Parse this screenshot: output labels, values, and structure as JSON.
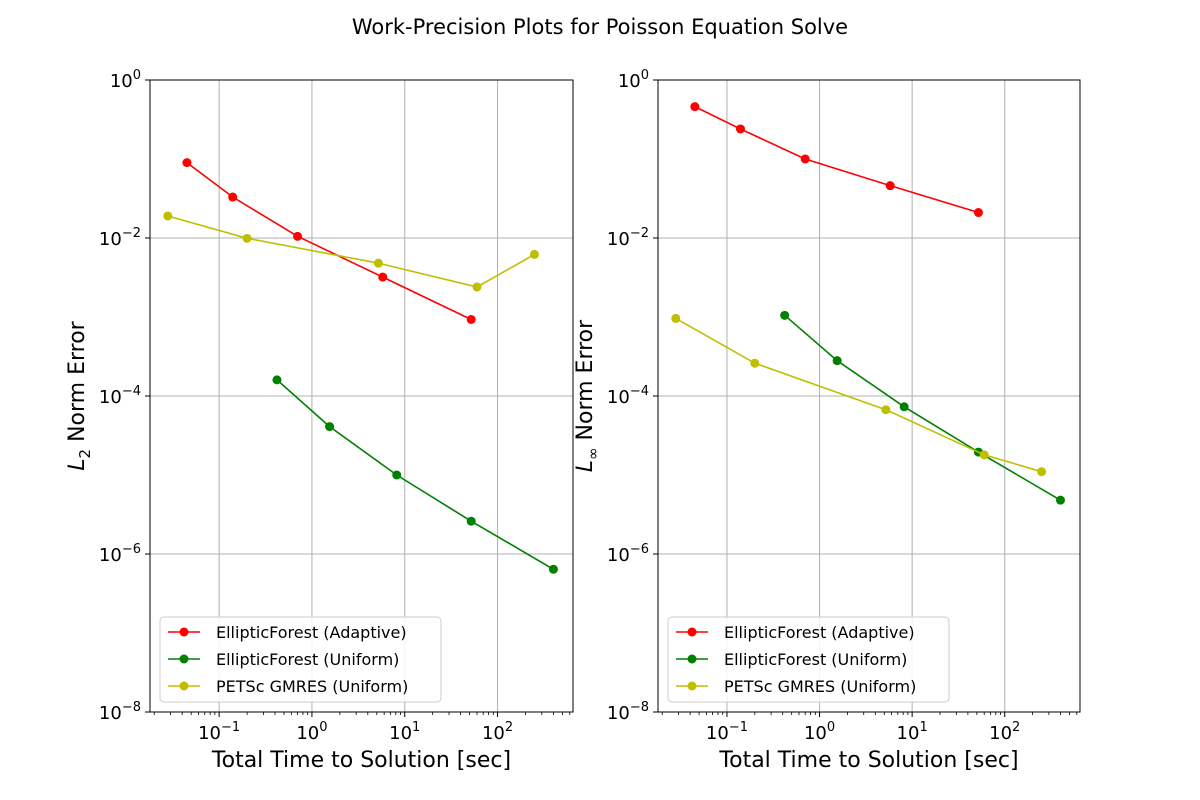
{
  "figure": {
    "title": "Work-Precision Plots for Poisson Equation Solve"
  },
  "chart_data": [
    {
      "type": "line",
      "xlabel": "Total Time to Solution [sec]",
      "ylabel_main": "L",
      "ylabel_sub": "2",
      "ylabel_rest": " Norm Error",
      "xscale": "log",
      "yscale": "log",
      "xlim": [
        0.018,
        650
      ],
      "ylim": [
        1e-08,
        1
      ],
      "xticks": [
        {
          "value": 0.1,
          "base": "10",
          "exp": "−1"
        },
        {
          "value": 1,
          "base": "10",
          "exp": "0"
        },
        {
          "value": 10,
          "base": "10",
          "exp": "1"
        },
        {
          "value": 100,
          "base": "10",
          "exp": "2"
        }
      ],
      "yticks": [
        {
          "value": 1e-08,
          "base": "10",
          "exp": "−8"
        },
        {
          "value": 1e-06,
          "base": "10",
          "exp": "−6"
        },
        {
          "value": 0.0001,
          "base": "10",
          "exp": "−4"
        },
        {
          "value": 0.01,
          "base": "10",
          "exp": "−2"
        },
        {
          "value": 1,
          "base": "10",
          "exp": "0"
        }
      ],
      "grid": true,
      "legend_position": "lower-left",
      "series": [
        {
          "name": "EllipticForest (Adaptive)",
          "color": "#ff0000",
          "points": [
            [
              0.045,
              0.09
            ],
            [
              0.14,
              0.033
            ],
            [
              0.7,
              0.0105
            ],
            [
              5.8,
              0.0032
            ],
            [
              52,
              0.00093
            ]
          ]
        },
        {
          "name": "EllipticForest (Uniform)",
          "color": "#008000",
          "points": [
            [
              0.42,
              0.00016
            ],
            [
              1.55,
              4.1e-05
            ],
            [
              8.2,
              1e-05
            ],
            [
              52,
              2.6e-06
            ],
            [
              400,
              6.4e-07
            ]
          ]
        },
        {
          "name": "PETSc GMRES (Uniform)",
          "color": "#bfbf00",
          "points": [
            [
              0.028,
              0.019
            ],
            [
              0.2,
              0.0099
            ],
            [
              5.2,
              0.0048
            ],
            [
              60,
              0.0024
            ],
            [
              250,
              0.0062
            ]
          ]
        }
      ]
    },
    {
      "type": "line",
      "xlabel": "Total Time to Solution [sec]",
      "ylabel_main": "L",
      "ylabel_sub": "∞",
      "ylabel_rest": " Norm Error",
      "xscale": "log",
      "yscale": "log",
      "xlim": [
        0.018,
        650
      ],
      "ylim": [
        1e-08,
        1
      ],
      "xticks": [
        {
          "value": 0.1,
          "base": "10",
          "exp": "−1"
        },
        {
          "value": 1,
          "base": "10",
          "exp": "0"
        },
        {
          "value": 10,
          "base": "10",
          "exp": "1"
        },
        {
          "value": 100,
          "base": "10",
          "exp": "2"
        }
      ],
      "yticks": [
        {
          "value": 1e-08,
          "base": "10",
          "exp": "−8"
        },
        {
          "value": 1e-06,
          "base": "10",
          "exp": "−6"
        },
        {
          "value": 0.0001,
          "base": "10",
          "exp": "−4"
        },
        {
          "value": 0.01,
          "base": "10",
          "exp": "−2"
        },
        {
          "value": 1,
          "base": "10",
          "exp": "0"
        }
      ],
      "grid": true,
      "legend_position": "lower-left",
      "series": [
        {
          "name": "EllipticForest (Adaptive)",
          "color": "#ff0000",
          "points": [
            [
              0.045,
              0.46
            ],
            [
              0.14,
              0.24
            ],
            [
              0.7,
              0.1
            ],
            [
              5.8,
              0.046
            ],
            [
              52,
              0.021
            ]
          ]
        },
        {
          "name": "EllipticForest (Uniform)",
          "color": "#008000",
          "points": [
            [
              0.42,
              0.00105
            ],
            [
              1.55,
              0.00028
            ],
            [
              8.2,
              7.3e-05
            ],
            [
              52,
              1.95e-05
            ],
            [
              400,
              4.8e-06
            ]
          ]
        },
        {
          "name": "PETSc GMRES (Uniform)",
          "color": "#bfbf00",
          "points": [
            [
              0.028,
              0.00096
            ],
            [
              0.2,
              0.00026
            ],
            [
              5.2,
              6.7e-05
            ],
            [
              60,
              1.8e-05
            ],
            [
              250,
              1.1e-05
            ]
          ]
        }
      ]
    }
  ]
}
